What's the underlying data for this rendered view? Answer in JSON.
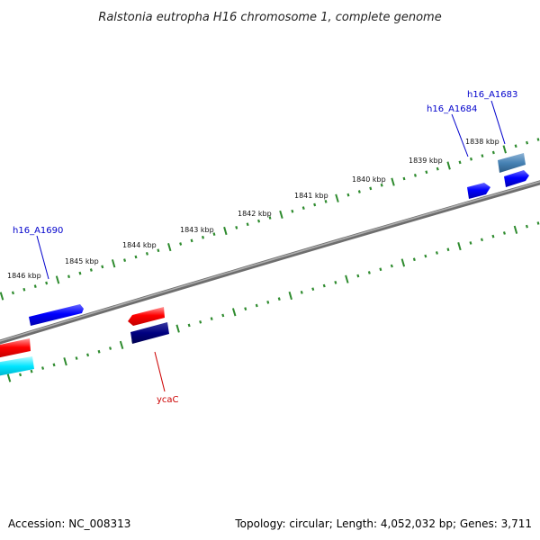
{
  "title": "Ralstonia eutropha H16 chromosome 1, complete genome",
  "footer": {
    "accession": "Accession: NC_008313",
    "summary": "Topology: circular; Length: 4,052,032 bp; Genes: 3,711"
  },
  "scale_labels": [
    "1846 kbp",
    "1845 kbp",
    "1844 kbp",
    "1843 kbp",
    "1842 kbp",
    "1841 kbp",
    "1840 kbp",
    "1839 kbp",
    "1838 kbp"
  ],
  "gene_labels": [
    {
      "text": "h16_A1683",
      "color": "#0000cc"
    },
    {
      "text": "h16_A1684",
      "color": "#0000cc"
    },
    {
      "text": "h16_A1690",
      "color": "#0000cc"
    },
    {
      "text": "ycaC",
      "color": "#cc0000"
    }
  ],
  "colors": {
    "backbone": "#808080",
    "ticks": "#2e8b2e",
    "gene_blue": "#0000ff",
    "gene_red": "#ff0000",
    "gene_navy": "#000080",
    "gene_cyan": "#00e5ff",
    "gene_steel": "#4682b4"
  }
}
